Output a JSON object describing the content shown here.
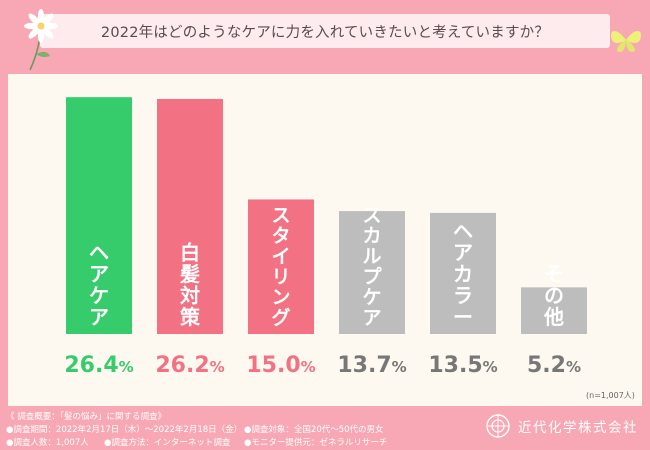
{
  "title": "2022年はどのようなケアに力を入れていきたいと考えていますか？",
  "chart_data": {
    "type": "bar",
    "title": "2022年はどのようなケアに力を入れていきたいと考えていますか？",
    "categories": [
      "ヘアケア",
      "白髪対策",
      "スタイリング",
      "スカルプケア",
      "ヘアカラー",
      "その他"
    ],
    "values": [
      26.4,
      26.2,
      15.0,
      13.7,
      13.5,
      5.2
    ],
    "value_labels": [
      {
        "num": "26.4",
        "unit": "%"
      },
      {
        "num": "26.2",
        "unit": "%"
      },
      {
        "num": "15.0",
        "unit": "%"
      },
      {
        "num": "13.7",
        "unit": "%"
      },
      {
        "num": "13.5",
        "unit": "%"
      },
      {
        "num": "5.2",
        "unit": "%"
      }
    ],
    "bar_colors": [
      "#37cc6b",
      "#f27283",
      "#f27283",
      "#bdbdbd",
      "#bdbdbd",
      "#bdbdbd"
    ],
    "label_colors": [
      "#37cc6b",
      "#f27283",
      "#f27283",
      "#777777",
      "#777777",
      "#777777"
    ],
    "ylim": [
      0,
      27.2
    ],
    "grid": false,
    "legend": "none"
  },
  "sample_note": "(n=1,007人)",
  "footer": {
    "overview": "《 調査概要：「髪の悩み」に関する調査》",
    "period": "●調査期間：2022年2月17日（木）〜2022年2月18日（金）",
    "target": "●調査対象：全国20代〜50代の男女",
    "count": "●調査人数：1,007人",
    "method": "●調査方法：インターネット調査",
    "provider": "●モニター提供元：ゼネラルリサーチ"
  },
  "company": "近代化学株式会社",
  "colors": {
    "background": "#f7a8b4",
    "panel": "#fdf9f1",
    "title_band": "#fdebee",
    "green": "#37cc6b",
    "pink": "#f27283",
    "gray": "#bdbdbd"
  },
  "icons": [
    "flower-icon",
    "butterfly-icon",
    "company-logo-icon"
  ]
}
